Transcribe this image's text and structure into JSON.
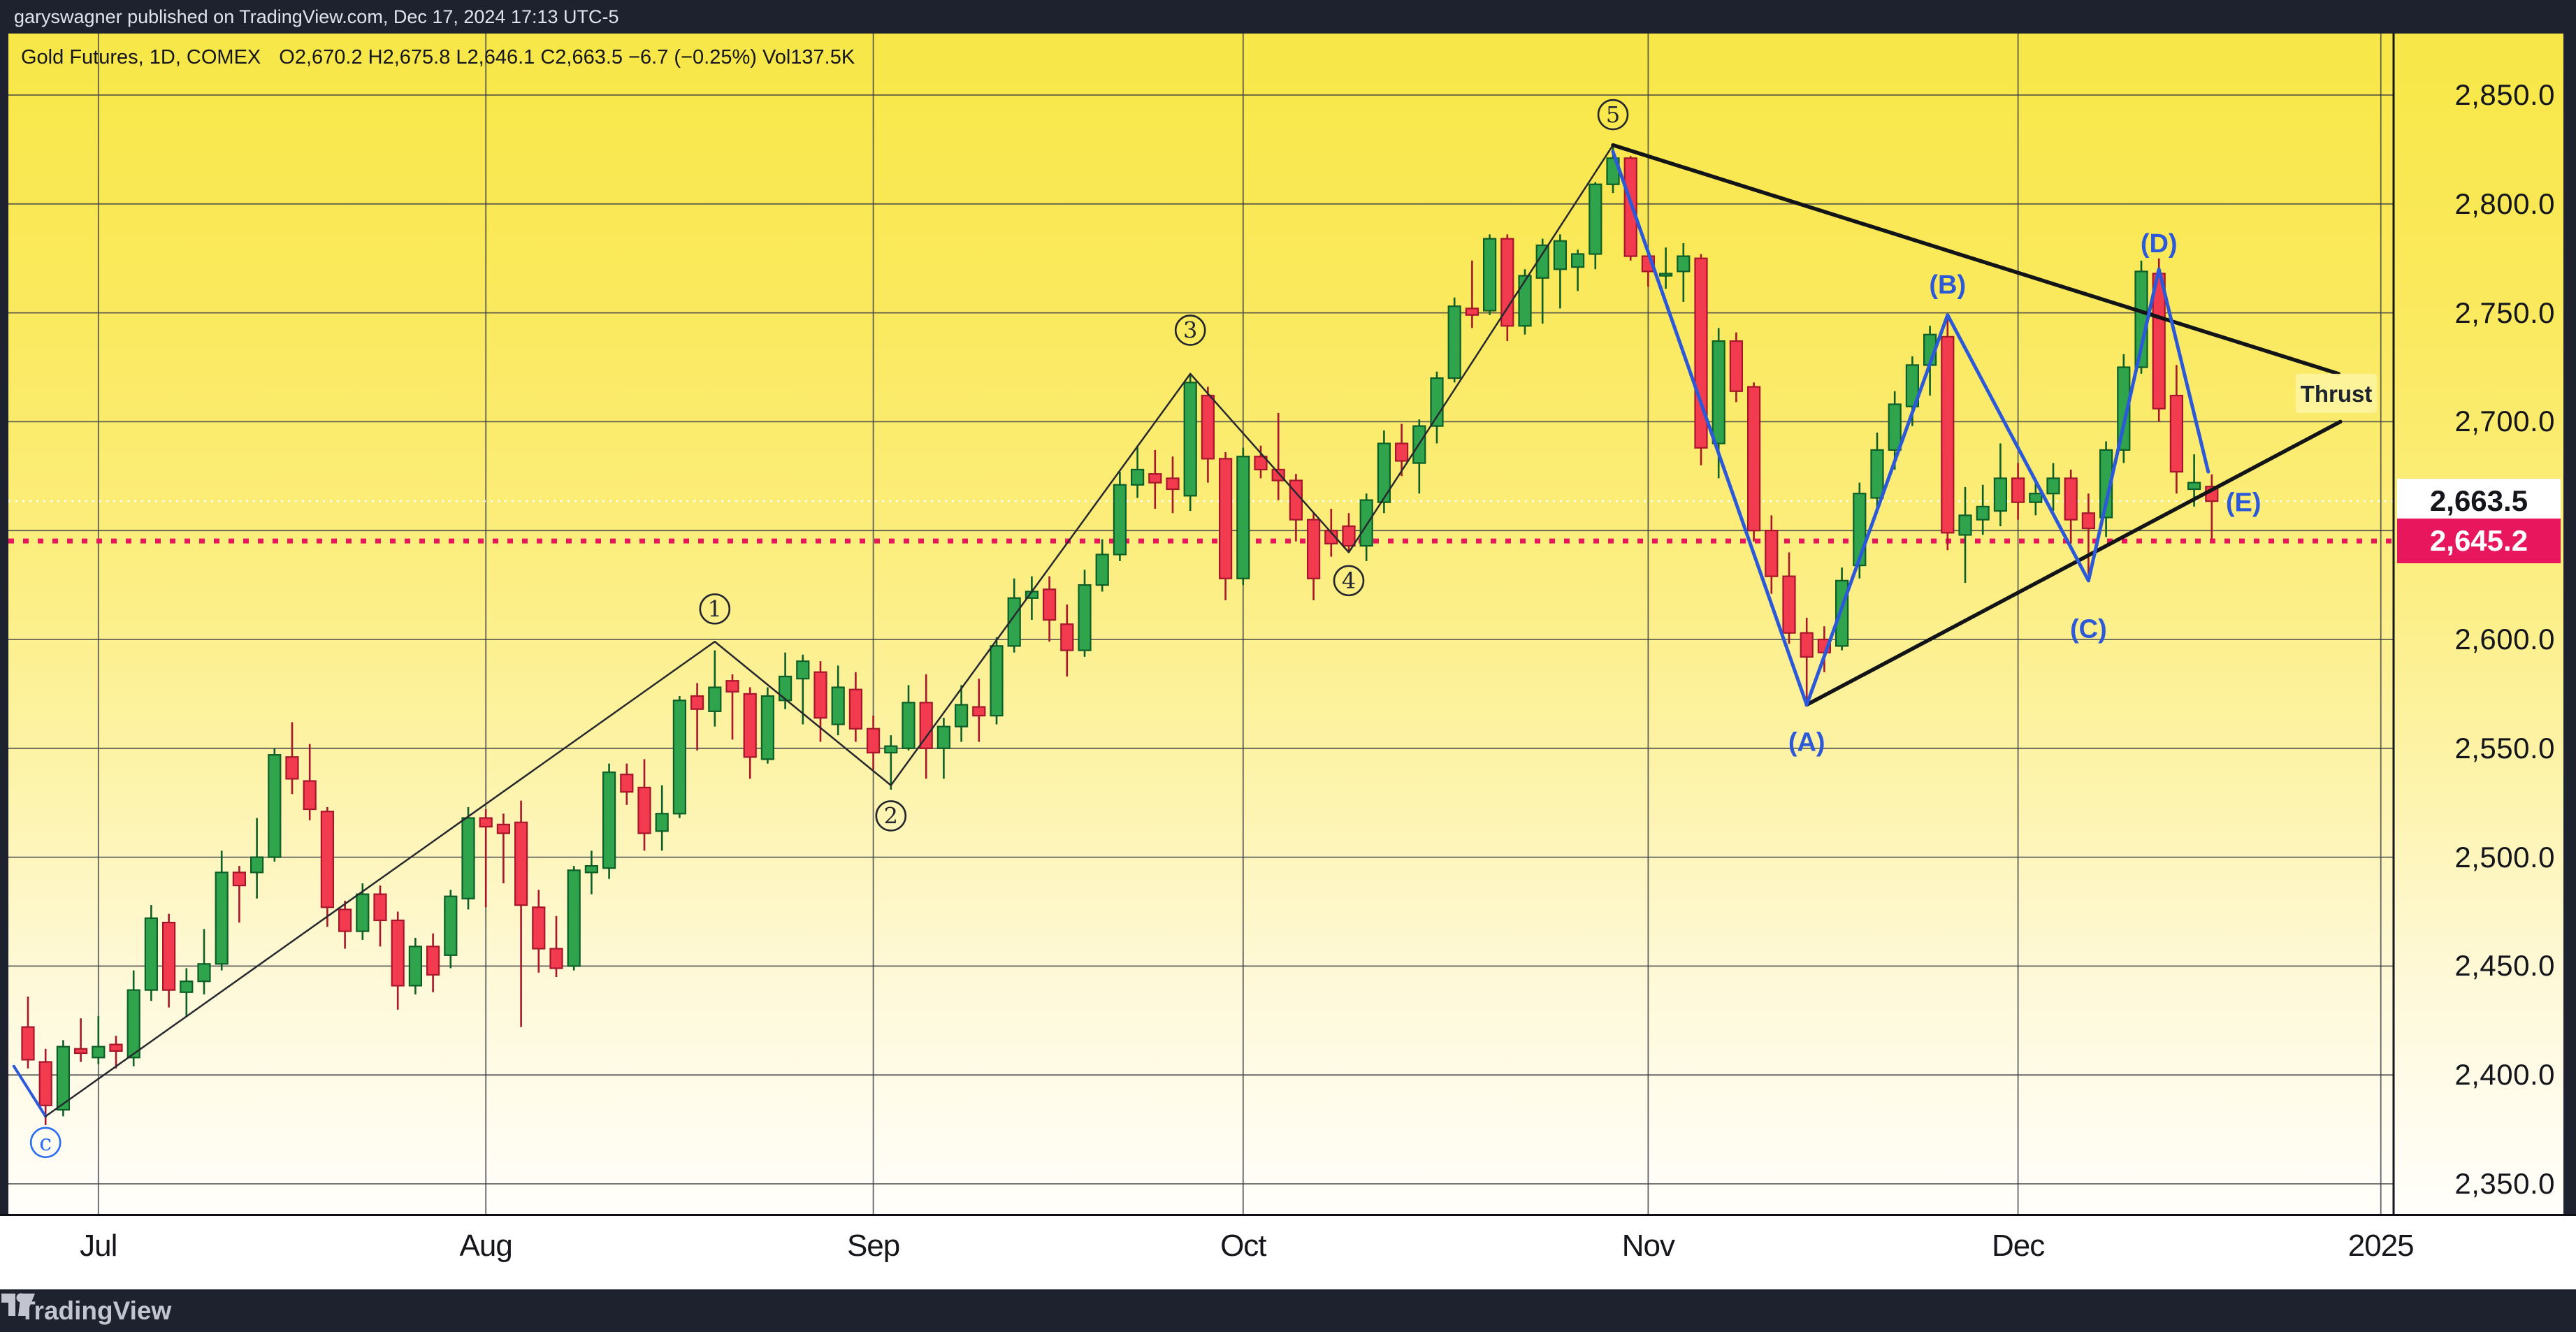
{
  "attribution": {
    "text": "garyswagner published on TradingView.com, Dec 17, 2024 17:13 UTC-5"
  },
  "header": {
    "title": "Gold Futures, 1D, COMEX",
    "ohlc": "O2,670.2  H2,675.8  L2,646.1  C2,663.5  −6.7 (−0.25%)  Vol137.5K"
  },
  "logo": {
    "wordmark": "TradingView",
    "icon": "tradingview-mark-icon"
  },
  "colors": {
    "bar_dark": "#1d222e",
    "grid": "#3c3e44",
    "candle_up": "#2fa44d",
    "candle_up_border": "#0c5f26",
    "candle_down": "#f23b4f",
    "candle_down_border": "#a8162b",
    "wave_blue": "#2b59d8",
    "alert_pink": "#e8175d",
    "last_white": "#ffffff",
    "label_dark": "#23262f"
  },
  "price_axis": {
    "ticks": [
      "2,850.0",
      "2,800.0",
      "2,750.0",
      "2,700.0",
      "2,600.0",
      "2,550.0",
      "2,500.0",
      "2,450.0",
      "2,400.0",
      "2,350.0"
    ],
    "tick_values": [
      2850,
      2800,
      2750,
      2700,
      2600,
      2550,
      2500,
      2450,
      2400,
      2350
    ],
    "last_price_badge": {
      "text": "2,663.5",
      "value": 2663.5
    },
    "alert_badge": {
      "text": "2,645.2",
      "value": 2645.2
    }
  },
  "chart_data": {
    "type": "candlestick",
    "title": "Gold Futures, 1D, COMEX",
    "ylim": [
      2330,
      2878
    ],
    "grid": true,
    "gridline_values": [
      2850,
      2800,
      2750,
      2700,
      2650,
      2600,
      2550,
      2500,
      2450,
      2400,
      2350
    ],
    "x_axis": {
      "months": [
        {
          "label": "Jul",
          "index": 4
        },
        {
          "label": "Aug",
          "index": 26
        },
        {
          "label": "Sep",
          "index": 48
        },
        {
          "label": "Oct",
          "index": 69
        },
        {
          "label": "Nov",
          "index": 92
        },
        {
          "label": "Dec",
          "index": 113
        },
        {
          "label": "2025",
          "index": 133.6
        }
      ]
    },
    "last_price": 2663.5,
    "alert_line_price": 2645.2,
    "candles_format": [
      "open",
      "high",
      "low",
      "close"
    ],
    "candles": [
      [
        2422,
        2436,
        2403,
        2407
      ],
      [
        2406,
        2412,
        2377,
        2386
      ],
      [
        2384,
        2416,
        2381,
        2413
      ],
      [
        2412,
        2426,
        2406,
        2410
      ],
      [
        2408,
        2427,
        2405,
        2413
      ],
      [
        2414,
        2418,
        2403,
        2411
      ],
      [
        2408,
        2448,
        2404,
        2439
      ],
      [
        2439,
        2478,
        2434,
        2472
      ],
      [
        2470,
        2474,
        2431,
        2439
      ],
      [
        2438,
        2449,
        2427,
        2443
      ],
      [
        2443,
        2467,
        2437,
        2451
      ],
      [
        2451,
        2503,
        2448,
        2493
      ],
      [
        2493,
        2496,
        2470,
        2487
      ],
      [
        2493,
        2518,
        2481,
        2500
      ],
      [
        2500,
        2550,
        2498,
        2547
      ],
      [
        2546,
        2562,
        2529,
        2536
      ],
      [
        2535,
        2552,
        2517,
        2522
      ],
      [
        2521,
        2523,
        2468,
        2477
      ],
      [
        2476,
        2480,
        2458,
        2466
      ],
      [
        2466,
        2488,
        2462,
        2483
      ],
      [
        2483,
        2487,
        2459,
        2471
      ],
      [
        2471,
        2475,
        2430,
        2441
      ],
      [
        2441,
        2463,
        2437,
        2459
      ],
      [
        2459,
        2465,
        2438,
        2446
      ],
      [
        2455,
        2485,
        2449,
        2482
      ],
      [
        2481,
        2523,
        2476,
        2518
      ],
      [
        2518,
        2522,
        2477,
        2514
      ],
      [
        2515,
        2520,
        2488,
        2511
      ],
      [
        2516,
        2526,
        2422,
        2478
      ],
      [
        2477,
        2485,
        2447,
        2458
      ],
      [
        2458,
        2473,
        2445,
        2449
      ],
      [
        2450,
        2496,
        2448,
        2494
      ],
      [
        2493,
        2503,
        2483,
        2496
      ],
      [
        2495,
        2543,
        2490,
        2539
      ],
      [
        2538,
        2543,
        2524,
        2530
      ],
      [
        2532,
        2545,
        2503,
        2511
      ],
      [
        2512,
        2533,
        2503,
        2520
      ],
      [
        2520,
        2574,
        2518,
        2572
      ],
      [
        2574,
        2580,
        2549,
        2568
      ],
      [
        2567,
        2595,
        2560,
        2578
      ],
      [
        2581,
        2584,
        2554,
        2576
      ],
      [
        2575,
        2578,
        2536,
        2546
      ],
      [
        2545,
        2578,
        2543,
        2574
      ],
      [
        2572,
        2594,
        2568,
        2583
      ],
      [
        2582,
        2593,
        2561,
        2590
      ],
      [
        2585,
        2590,
        2553,
        2564
      ],
      [
        2561,
        2588,
        2556,
        2578
      ],
      [
        2577,
        2585,
        2553,
        2559
      ],
      [
        2559,
        2565,
        2540,
        2548
      ],
      [
        2548,
        2556,
        2531,
        2551
      ],
      [
        2550,
        2579,
        2549,
        2571
      ],
      [
        2571,
        2584,
        2536,
        2550
      ],
      [
        2550,
        2564,
        2536,
        2560
      ],
      [
        2560,
        2579,
        2553,
        2570
      ],
      [
        2569,
        2582,
        2553,
        2565
      ],
      [
        2565,
        2601,
        2561,
        2597
      ],
      [
        2597,
        2628,
        2594,
        2619
      ],
      [
        2619,
        2629,
        2609,
        2622
      ],
      [
        2623,
        2629,
        2599,
        2609
      ],
      [
        2607,
        2616,
        2583,
        2595
      ],
      [
        2595,
        2632,
        2592,
        2625
      ],
      [
        2625,
        2646,
        2622,
        2639
      ],
      [
        2639,
        2677,
        2636,
        2671
      ],
      [
        2671,
        2689,
        2665,
        2678
      ],
      [
        2676,
        2687,
        2660,
        2672
      ],
      [
        2674,
        2684,
        2658,
        2669
      ],
      [
        2666,
        2722,
        2659,
        2718
      ],
      [
        2712,
        2716,
        2672,
        2683
      ],
      [
        2683,
        2686,
        2618,
        2628
      ],
      [
        2628,
        2688,
        2625,
        2684
      ],
      [
        2684,
        2689,
        2674,
        2678
      ],
      [
        2678,
        2704,
        2664,
        2673
      ],
      [
        2673,
        2676,
        2645,
        2655
      ],
      [
        2655,
        2658,
        2618,
        2628
      ],
      [
        2650,
        2660,
        2638,
        2644
      ],
      [
        2652,
        2658,
        2640,
        2643
      ],
      [
        2643,
        2667,
        2636,
        2664
      ],
      [
        2663,
        2696,
        2658,
        2690
      ],
      [
        2690,
        2699,
        2675,
        2682
      ],
      [
        2681,
        2701,
        2667,
        2698
      ],
      [
        2698,
        2723,
        2690,
        2720
      ],
      [
        2720,
        2757,
        2718,
        2753
      ],
      [
        2752,
        2774,
        2743,
        2749
      ],
      [
        2751,
        2786,
        2749,
        2784
      ],
      [
        2784,
        2786,
        2737,
        2744
      ],
      [
        2744,
        2770,
        2740,
        2767
      ],
      [
        2766,
        2784,
        2745,
        2781
      ],
      [
        2770,
        2786,
        2752,
        2783
      ],
      [
        2771,
        2779,
        2760,
        2777
      ],
      [
        2777,
        2810,
        2770,
        2809
      ],
      [
        2809,
        2826,
        2805,
        2821
      ],
      [
        2821,
        2822,
        2774,
        2776
      ],
      [
        2776,
        2779,
        2762,
        2769
      ],
      [
        2767,
        2780,
        2761,
        2768
      ],
      [
        2769,
        2782,
        2755,
        2776
      ],
      [
        2775,
        2777,
        2680,
        2688
      ],
      [
        2690,
        2743,
        2674,
        2737
      ],
      [
        2737,
        2741,
        2709,
        2714
      ],
      [
        2716,
        2718,
        2645,
        2650
      ],
      [
        2650,
        2657,
        2621,
        2629
      ],
      [
        2629,
        2640,
        2598,
        2603
      ],
      [
        2603,
        2610,
        2570,
        2592
      ],
      [
        2600,
        2606,
        2585,
        2594
      ],
      [
        2597,
        2633,
        2595,
        2627
      ],
      [
        2634,
        2672,
        2628,
        2667
      ],
      [
        2665,
        2695,
        2659,
        2687
      ],
      [
        2687,
        2714,
        2678,
        2708
      ],
      [
        2707,
        2730,
        2698,
        2726
      ],
      [
        2726,
        2744,
        2712,
        2740
      ],
      [
        2739,
        2749,
        2641,
        2649
      ],
      [
        2648,
        2670,
        2626,
        2657
      ],
      [
        2655,
        2671,
        2648,
        2661
      ],
      [
        2659,
        2690,
        2652,
        2674
      ],
      [
        2674,
        2681,
        2655,
        2663
      ],
      [
        2663,
        2673,
        2657,
        2667
      ],
      [
        2667,
        2681,
        2659,
        2674
      ],
      [
        2674,
        2678,
        2644,
        2655
      ],
      [
        2658,
        2667,
        2630,
        2651
      ],
      [
        2656,
        2691,
        2647,
        2687
      ],
      [
        2687,
        2731,
        2681,
        2725
      ],
      [
        2725,
        2774,
        2722,
        2769
      ],
      [
        2768,
        2775,
        2700,
        2706
      ],
      [
        2712,
        2726,
        2667,
        2677
      ],
      [
        2669,
        2685,
        2661,
        2672
      ],
      [
        2670.2,
        2675.8,
        2646.1,
        2663.5
      ]
    ],
    "lines": [
      {
        "name": "entry-segment",
        "color": "#2b59d8",
        "width": 4,
        "pts": [
          [
            -0.8,
            2404
          ],
          [
            1,
            2381
          ]
        ]
      },
      {
        "name": "impulse-zigzag",
        "color": "#26282e",
        "width": 2.5,
        "pts": [
          [
            1,
            2381
          ],
          [
            39,
            2599
          ],
          [
            49,
            2533
          ],
          [
            66,
            2722
          ],
          [
            75,
            2640
          ],
          [
            90,
            2827
          ]
        ]
      },
      {
        "name": "triangle-upper",
        "color": "#121418",
        "width": 5.5,
        "pts": [
          [
            90,
            2827
          ],
          [
            131.2,
            2722
          ]
        ]
      },
      {
        "name": "triangle-lower",
        "color": "#121418",
        "width": 5.5,
        "pts": [
          [
            101,
            2570
          ],
          [
            131.3,
            2700
          ]
        ]
      },
      {
        "name": "abcde-zigzag",
        "color": "#2b59d8",
        "width": 5,
        "pts": [
          [
            90,
            2824
          ],
          [
            101,
            2570
          ],
          [
            109,
            2749
          ],
          [
            117,
            2627
          ],
          [
            121,
            2770
          ],
          [
            123.8,
            2677
          ]
        ]
      }
    ],
    "wave_circles": [
      {
        "sym": "1",
        "index": 39,
        "price": 2614,
        "color": "#23262f"
      },
      {
        "sym": "2",
        "index": 49,
        "price": 2519,
        "color": "#23262f"
      },
      {
        "sym": "3",
        "index": 66,
        "price": 2742,
        "color": "#23262f"
      },
      {
        "sym": "4",
        "index": 75,
        "price": 2627,
        "color": "#23262f"
      },
      {
        "sym": "5",
        "index": 90,
        "price": 2841,
        "color": "#23262f"
      },
      {
        "sym": "c",
        "index": 1,
        "price": 2369,
        "color": "#2b6cf6"
      }
    ],
    "wave_letters": [
      {
        "text": "(A)",
        "index": 101,
        "price": 2553
      },
      {
        "text": "(B)",
        "index": 109,
        "price": 2763
      },
      {
        "text": "(C)",
        "index": 117,
        "price": 2605
      },
      {
        "text": "(D)",
        "index": 121,
        "price": 2782
      },
      {
        "text": "(E)",
        "index": 125.8,
        "price": 2663
      }
    ],
    "annotations": [
      {
        "text": "Thrust",
        "x": 3343,
        "price": 2713
      }
    ]
  }
}
